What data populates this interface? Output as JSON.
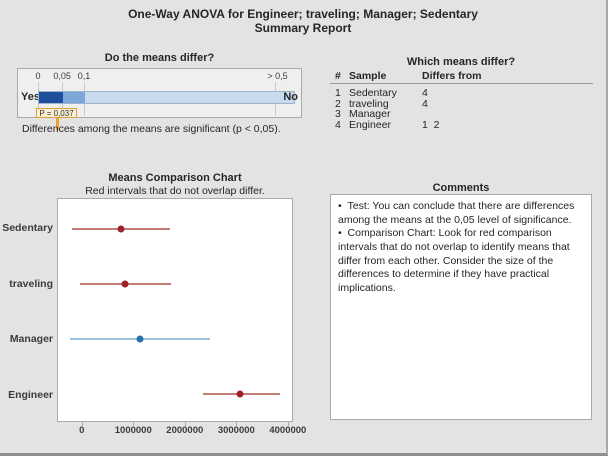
{
  "window": {
    "bg": "#E3E3E3",
    "edge": "#8E8E8E"
  },
  "header": {
    "title": "One-Way ANOVA for Engineer; traveling; Manager; Sedentary",
    "subtitle": "Summary Report"
  },
  "gauge": {
    "title": "Do the means differ?",
    "tick_labels": [
      "0",
      "0,05",
      "0,1",
      "> 0,5"
    ],
    "yes_label": "Yes",
    "no_label": "No",
    "p_value": 0.037,
    "p_label": "P = 0,037",
    "note": "Differences among the means are significant (p < 0,05).",
    "colors": {
      "segment_0_to_005": "#1E4F9C",
      "segment_005_to_01": "#7DA7D9",
      "segment_01_to_05": "#C9DAEE",
      "marker": "#EFA02F",
      "p_box_bg": "#FBEFD5",
      "p_box_border": "#DFA03C"
    }
  },
  "which_means_differ": {
    "title": "Which means differ?",
    "headers": {
      "num": "#",
      "sample": "Sample",
      "differs": "Differs from"
    },
    "rows": [
      {
        "num": "1",
        "sample": "Sedentary",
        "differs": "4"
      },
      {
        "num": "2",
        "sample": "traveling",
        "differs": "4"
      },
      {
        "num": "3",
        "sample": "Manager",
        "differs": ""
      },
      {
        "num": "4",
        "sample": "Engineer",
        "differs": "1  2"
      }
    ]
  },
  "chart_data": {
    "type": "interval",
    "title": "Means Comparison Chart",
    "subtitle": "Red intervals that do not overlap differ.",
    "categories": [
      "Sedentary",
      "traveling",
      "Manager",
      "Engineer"
    ],
    "points": [
      {
        "label": "Sedentary",
        "mean": 750000,
        "lower": -200000,
        "upper": 1720000,
        "color": "red"
      },
      {
        "label": "traveling",
        "mean": 840000,
        "lower": -50000,
        "upper": 1740000,
        "color": "red"
      },
      {
        "label": "Manager",
        "mean": 1120000,
        "lower": -250000,
        "upper": 2500000,
        "color": "blue"
      },
      {
        "label": "Engineer",
        "mean": 3090000,
        "lower": 2360000,
        "upper": 3870000,
        "color": "red"
      }
    ],
    "xticks": [
      "0",
      "1000000",
      "2000000",
      "3000000",
      "4000000"
    ],
    "xtick_values": [
      0,
      1000000,
      2000000,
      3000000,
      4000000
    ],
    "xlim": [
      -480000,
      4100000
    ],
    "grid": false,
    "colors": {
      "red_line": "#C17C76",
      "red_dot": "#9C2428",
      "blue_line": "#9CC2E0",
      "blue_dot": "#2C6FAD"
    }
  },
  "comments": {
    "title": "Comments",
    "items": [
      "Test: You can conclude that there are differences among the means at the 0,05 level of significance.",
      "Comparison Chart: Look for red comparison intervals that do not overlap to identify means that differ from each other. Consider the size of the differences to determine if they have practical implications."
    ]
  }
}
